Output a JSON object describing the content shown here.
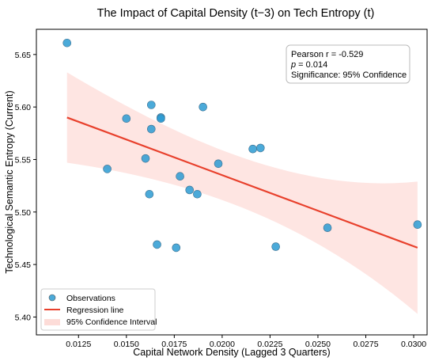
{
  "chart_data": {
    "type": "scatter",
    "title": "The Impact of Capital Density (t−3) on Tech Entropy (t)",
    "xlabel": "Capital Network Density (Lagged 3 Quarters)",
    "ylabel": "Technological Semantic Entropy (Current)",
    "xlim": [
      0.0103,
      0.0307
    ],
    "ylim": [
      5.383,
      5.674
    ],
    "xticks": [
      0.0125,
      0.015,
      0.0175,
      0.02,
      0.0225,
      0.025,
      0.0275,
      0.03
    ],
    "xtick_labels": [
      "0.0125",
      "0.0150",
      "0.0175",
      "0.0200",
      "0.0225",
      "0.0250",
      "0.0275",
      "0.0300"
    ],
    "yticks": [
      5.4,
      5.45,
      5.5,
      5.55,
      5.6,
      5.65
    ],
    "ytick_labels": [
      "5.40",
      "5.45",
      "5.50",
      "5.55",
      "5.60",
      "5.65"
    ],
    "grid": false,
    "legend_position": "lower-left",
    "series": [
      {
        "name": "Observations",
        "type": "scatter",
        "color": "#2b9bd2",
        "points": [
          {
            "x": 0.0119,
            "y": 5.661
          },
          {
            "x": 0.014,
            "y": 5.541
          },
          {
            "x": 0.015,
            "y": 5.589
          },
          {
            "x": 0.016,
            "y": 5.551
          },
          {
            "x": 0.0162,
            "y": 5.517
          },
          {
            "x": 0.0163,
            "y": 5.602
          },
          {
            "x": 0.0163,
            "y": 5.579
          },
          {
            "x": 0.0166,
            "y": 5.469
          },
          {
            "x": 0.0168,
            "y": 5.59
          },
          {
            "x": 0.0168,
            "y": 5.589
          },
          {
            "x": 0.0176,
            "y": 5.466
          },
          {
            "x": 0.0178,
            "y": 5.534
          },
          {
            "x": 0.0183,
            "y": 5.521
          },
          {
            "x": 0.0187,
            "y": 5.517
          },
          {
            "x": 0.019,
            "y": 5.6
          },
          {
            "x": 0.0198,
            "y": 5.546
          },
          {
            "x": 0.0216,
            "y": 5.56
          },
          {
            "x": 0.022,
            "y": 5.561
          },
          {
            "x": 0.0228,
            "y": 5.467
          },
          {
            "x": 0.0255,
            "y": 5.485
          },
          {
            "x": 0.0302,
            "y": 5.488
          }
        ]
      },
      {
        "name": "Regression line",
        "type": "line",
        "color": "#e8402c",
        "x": [
          0.0119,
          0.0302
        ],
        "y": [
          5.59,
          5.466
        ]
      },
      {
        "name": "95% Confidence Interval",
        "type": "band",
        "color": "#fddcd8",
        "x": [
          0.0119,
          0.0302
        ],
        "upper": [
          5.628,
          5.525
        ],
        "lower": [
          5.542,
          5.399
        ]
      }
    ],
    "annotation": {
      "pearson": "Pearson r = -0.529",
      "p_prefix": "p",
      "p_value": " = 0.014",
      "significance": "Significance: 95% Confidence",
      "position": "top-right"
    }
  }
}
